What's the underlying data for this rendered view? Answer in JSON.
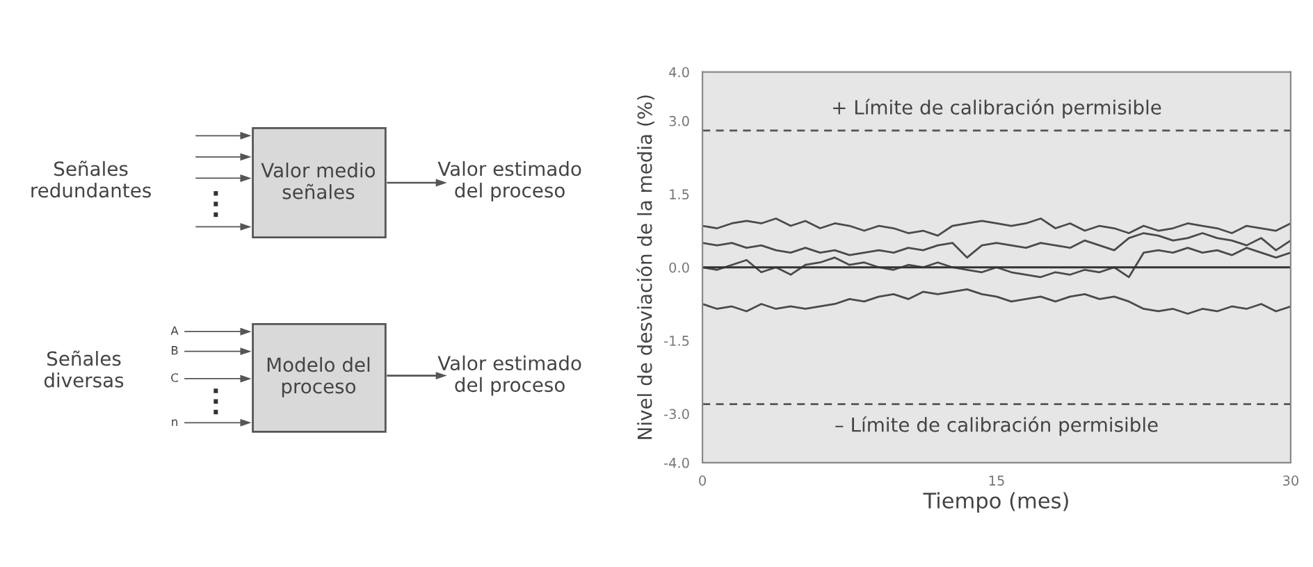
{
  "chart_data": [
    {
      "type": "other",
      "annotations": [
        "Señales\nredundantes",
        "Valor medio\nseñales",
        "Valor estimado\ndel proceso",
        "Señales\ndiversas",
        "A",
        "B",
        "C",
        "n",
        "Modelo del\nproceso",
        "Valor estimado\ndel proceso"
      ]
    },
    {
      "type": "line",
      "xlabel": "Tiempo (mes)",
      "ylabel": "Nivel de desviación de la media (%)",
      "x": [
        0,
        0.75,
        1.5,
        2.25,
        3,
        3.75,
        4.5,
        5.25,
        6,
        6.75,
        7.5,
        8.25,
        9,
        9.75,
        10.5,
        11.25,
        12,
        12.75,
        13.5,
        14.25,
        15,
        15.75,
        16.5,
        17.25,
        18,
        18.75,
        19.5,
        20.25,
        21,
        21.75,
        22.5,
        23.25,
        24,
        24.75,
        25.5,
        26.25,
        27,
        27.75,
        28.5,
        29.25,
        30
      ],
      "series": [
        {
          "color": "#4a4a4a",
          "values": [
            0.85,
            0.8,
            0.9,
            0.95,
            0.9,
            1.0,
            0.85,
            0.95,
            0.8,
            0.9,
            0.85,
            0.75,
            0.85,
            0.8,
            0.7,
            0.75,
            0.65,
            0.85,
            0.9,
            0.95,
            0.9,
            0.85,
            0.9,
            1.0,
            0.8,
            0.9,
            0.75,
            0.85,
            0.8,
            0.7,
            0.85,
            0.75,
            0.8,
            0.9,
            0.85,
            0.8,
            0.7,
            0.85,
            0.8,
            0.75,
            0.9
          ]
        },
        {
          "color": "#4a4a4a",
          "values": [
            0.5,
            0.45,
            0.5,
            0.4,
            0.45,
            0.35,
            0.3,
            0.4,
            0.3,
            0.35,
            0.25,
            0.3,
            0.35,
            0.3,
            0.4,
            0.35,
            0.45,
            0.5,
            0.2,
            0.45,
            0.5,
            0.45,
            0.4,
            0.5,
            0.45,
            0.4,
            0.55,
            0.45,
            0.35,
            0.6,
            0.7,
            0.65,
            0.55,
            0.6,
            0.7,
            0.6,
            0.55,
            0.45,
            0.6,
            0.35,
            0.55
          ]
        },
        {
          "color": "#4a4a4a",
          "values": [
            0.0,
            -0.05,
            0.05,
            0.15,
            -0.1,
            0.0,
            -0.15,
            0.05,
            0.1,
            0.2,
            0.05,
            0.1,
            0.0,
            -0.05,
            0.05,
            0.0,
            0.1,
            0.0,
            -0.05,
            -0.1,
            0.0,
            -0.1,
            -0.15,
            -0.2,
            -0.1,
            -0.15,
            -0.05,
            -0.1,
            0.0,
            -0.2,
            0.3,
            0.35,
            0.3,
            0.4,
            0.3,
            0.35,
            0.25,
            0.4,
            0.3,
            0.2,
            0.3
          ]
        },
        {
          "color": "#4a4a4a",
          "values": [
            -0.75,
            -0.85,
            -0.8,
            -0.9,
            -0.75,
            -0.85,
            -0.8,
            -0.85,
            -0.8,
            -0.75,
            -0.65,
            -0.7,
            -0.6,
            -0.55,
            -0.65,
            -0.5,
            -0.55,
            -0.5,
            -0.45,
            -0.55,
            -0.6,
            -0.7,
            -0.65,
            -0.6,
            -0.7,
            -0.6,
            -0.55,
            -0.65,
            -0.6,
            -0.7,
            -0.85,
            -0.9,
            -0.85,
            -0.95,
            -0.85,
            -0.9,
            -0.8,
            -0.85,
            -0.75,
            -0.9,
            -0.8
          ]
        }
      ],
      "xlim": [
        0,
        30
      ],
      "xticks": [
        0,
        15,
        30
      ],
      "ylim": [
        -4,
        4
      ],
      "yticks": [
        {
          "value": 4,
          "label": "4.0"
        },
        {
          "value": 3,
          "label": "3.0"
        },
        {
          "value": 1.5,
          "label": "1.5"
        },
        {
          "value": 0,
          "label": "0.0"
        },
        {
          "value": -1.5,
          "label": "-1.5"
        },
        {
          "value": -3,
          "label": "-3.0"
        },
        {
          "value": -4,
          "label": "-4.0"
        }
      ],
      "ref_lines": [
        {
          "axis": "y",
          "value": 2.8,
          "label": "+ Límite de calibración permisible",
          "color": "#555555",
          "line_style": "dashed"
        },
        {
          "axis": "y",
          "value": -2.8,
          "label": "– Límite de calibración permisible",
          "color": "#555555",
          "line_style": "dashed"
        },
        {
          "axis": "y",
          "value": 0,
          "color": "#333333",
          "line_style": "solid"
        }
      ],
      "grid": false,
      "legend": false
    }
  ]
}
